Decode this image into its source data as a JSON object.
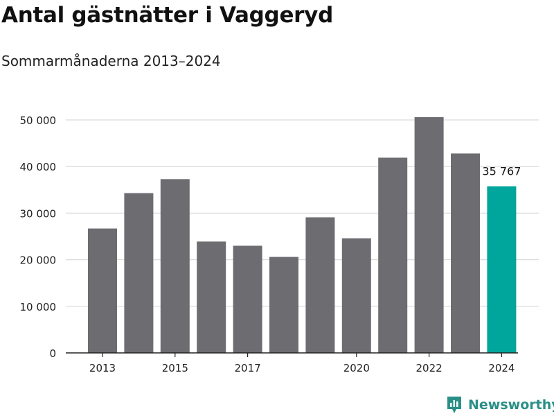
{
  "title": "Antal gästnätter i Vaggeryd",
  "subtitle": "Sommarmånaderna 2013–2024",
  "brand": {
    "name": "Newsworthy",
    "color": "#2a8f87",
    "icon": "newsworthy-logo-icon"
  },
  "colors": {
    "bar": "#6d6c71",
    "highlight": "#00a59b",
    "grid": "#d9d9d9",
    "axis": "#222222"
  },
  "chart_data": {
    "type": "bar",
    "categories": [
      "2013",
      "2014",
      "2015",
      "2016",
      "2017",
      "2018",
      "2019",
      "2020",
      "2021",
      "2022",
      "2023",
      "2024"
    ],
    "values": [
      26700,
      34300,
      37300,
      23900,
      23000,
      20600,
      29100,
      24600,
      41900,
      50600,
      42800,
      35767
    ],
    "highlight_index": 11,
    "data_labels": [
      {
        "index": 11,
        "text": "35 767"
      }
    ],
    "x_tick_labels": [
      {
        "index": 0,
        "text": "2013"
      },
      {
        "index": 2,
        "text": "2015"
      },
      {
        "index": 4,
        "text": "2017"
      },
      {
        "index": 7,
        "text": "2020"
      },
      {
        "index": 9,
        "text": "2022"
      },
      {
        "index": 11,
        "text": "2024"
      }
    ],
    "y_ticks": [
      0,
      10000,
      20000,
      30000,
      40000,
      50000
    ],
    "y_tick_labels": [
      "0",
      "10 000",
      "20 000",
      "30 000",
      "40 000",
      "50 000"
    ],
    "ylim": [
      0,
      50000
    ],
    "grid": true,
    "xlabel": "",
    "ylabel": ""
  }
}
